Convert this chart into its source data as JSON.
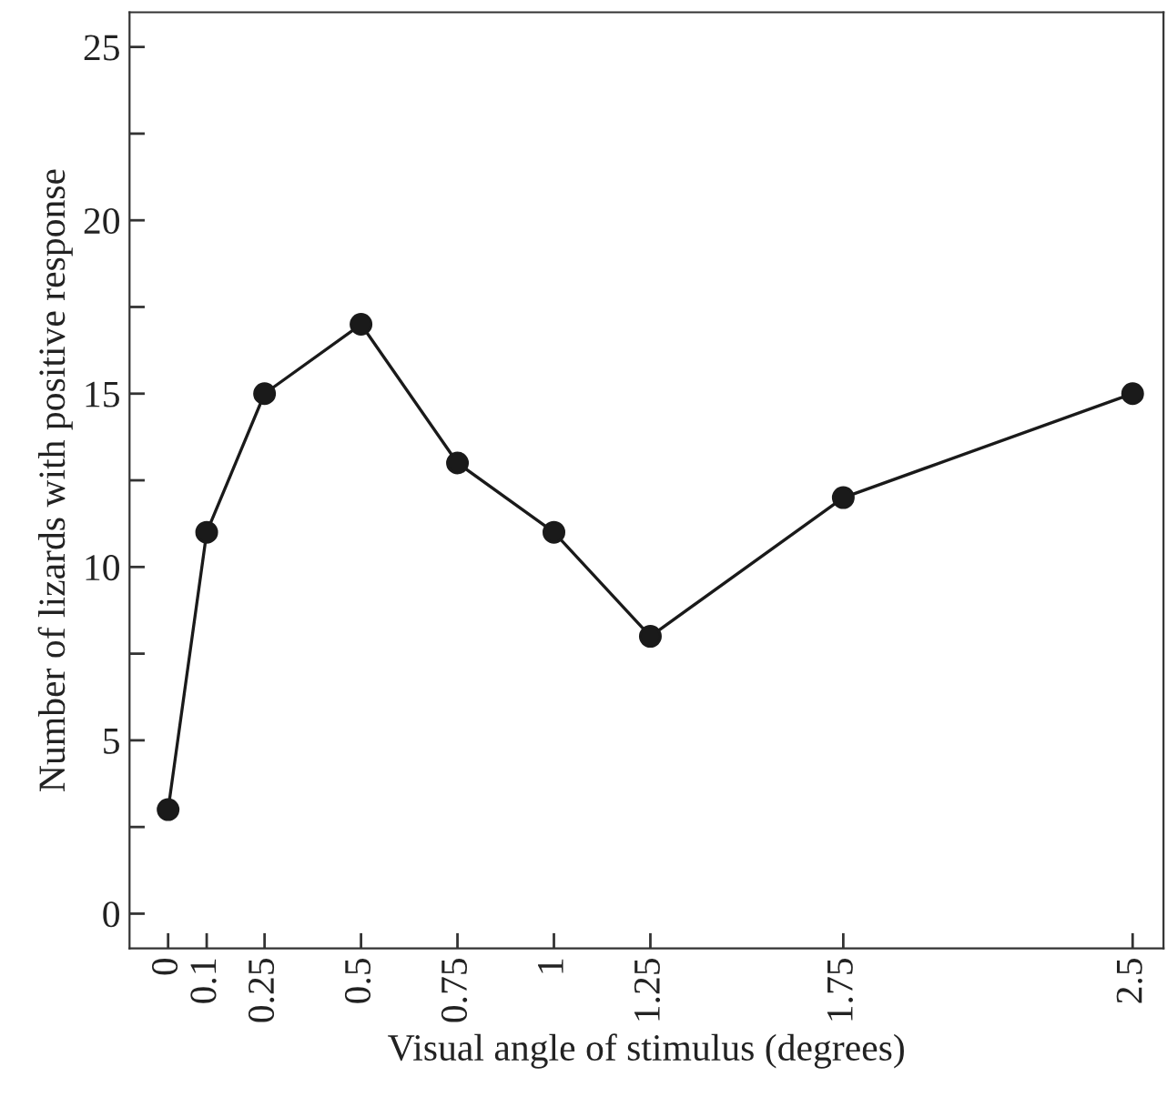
{
  "chart_data": {
    "type": "line",
    "xlabel": "Visual angle of stimulus (degrees)",
    "ylabel": "Number of lizards with positive response",
    "x": [
      0,
      0.1,
      0.25,
      0.5,
      0.75,
      1,
      1.25,
      1.75,
      2.5
    ],
    "series": [
      {
        "color": "#1a1a1a",
        "values": [
          3,
          11,
          15,
          17,
          13,
          11,
          8,
          12,
          15
        ]
      }
    ],
    "marker": "circle",
    "line_style": "solid",
    "grid": false,
    "legend": false,
    "xlim": [
      -0.1,
      2.58
    ],
    "ylim": [
      -1,
      26
    ],
    "xticks": [
      0,
      0.1,
      0.25,
      0.5,
      0.75,
      1,
      1.25,
      1.75,
      2.5
    ],
    "yticks": [
      0,
      {
        "value": 2.5,
        "label": null
      },
      5,
      {
        "value": 7.5,
        "label": null
      },
      10,
      {
        "value": 12.5,
        "label": null
      },
      15,
      {
        "value": 17.5,
        "label": null
      },
      20,
      {
        "value": 22.5,
        "label": null
      },
      25
    ]
  }
}
